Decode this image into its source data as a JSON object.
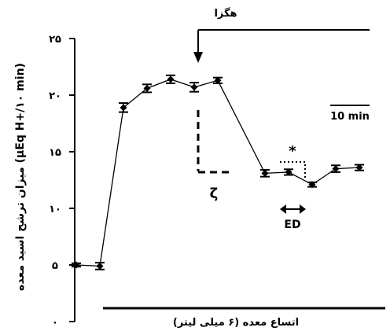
{
  "chart_data": {
    "type": "line",
    "ylabel": "میزان ترشح اسید معده (μEq H+/۱۰ min)",
    "xlabel": "اتساع معده (۶ میلی لیتر)",
    "ylim": [
      0,
      25
    ],
    "yticks": [
      {
        "value": 0,
        "label": "۰"
      },
      {
        "value": 5,
        "label": "۵"
      },
      {
        "value": 10,
        "label": "۱۰"
      },
      {
        "value": 15,
        "label": "۱۵"
      },
      {
        "value": 20,
        "label": "۲۰"
      },
      {
        "value": 25,
        "label": "۲۵"
      }
    ],
    "x": [
      1,
      2,
      3,
      4,
      5,
      6,
      7,
      8,
      9,
      10,
      11,
      12,
      13,
      14
    ],
    "series": [
      {
        "values": [
          5.0,
          4.9,
          18.9,
          20.6,
          21.4,
          20.7,
          21.3,
          13.1,
          13.2,
          12.1,
          13.5,
          13.6
        ],
        "x": [
          1,
          2,
          3,
          4,
          5,
          6,
          7,
          9,
          10,
          11,
          12,
          13
        ],
        "errors": [
          0.15,
          0.3,
          0.4,
          0.35,
          0.35,
          0.4,
          0.25,
          0.3,
          0.25,
          0.2,
          0.3,
          0.25
        ]
      }
    ],
    "annotations": {
      "drug_label": "هگزا",
      "zeta_label": "ζ",
      "scale_label": "10 min",
      "ed_label": "ED",
      "significance": "*"
    }
  }
}
